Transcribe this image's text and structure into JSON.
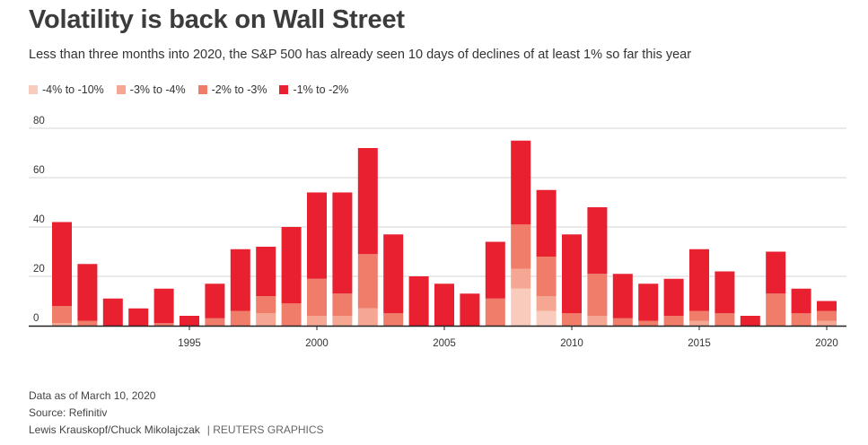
{
  "header": {
    "title": "Volatility is back on Wall Street",
    "subtitle": "Less than three months into 2020, the S&P 500 has already seen 10 days of declines of at least 1% so far this year"
  },
  "legend": [
    {
      "label": "-4% to -10%",
      "color": "#f9cbbd"
    },
    {
      "label": "-3% to -4%",
      "color": "#f5a793"
    },
    {
      "label": "-2% to -3%",
      "color": "#ef7d6a"
    },
    {
      "label": "-1% to -2%",
      "color": "#e8202f"
    }
  ],
  "chart_data": {
    "type": "bar",
    "stacked": true,
    "x": [
      1990,
      1991,
      1992,
      1993,
      1994,
      1995,
      1996,
      1997,
      1998,
      1999,
      2000,
      2001,
      2002,
      2003,
      2004,
      2005,
      2006,
      2007,
      2008,
      2009,
      2010,
      2011,
      2012,
      2013,
      2014,
      2015,
      2016,
      2017,
      2018,
      2019,
      2020
    ],
    "series": [
      {
        "name": "-4% to -10%",
        "values": [
          0,
          0,
          0,
          0,
          0,
          0,
          0,
          0,
          0,
          0,
          0,
          0,
          0,
          0,
          0,
          0,
          0,
          0,
          15,
          6,
          0,
          0,
          0,
          0,
          0,
          0,
          0,
          0,
          0,
          0,
          0
        ]
      },
      {
        "name": "-3% to -4%",
        "values": [
          1,
          0,
          0,
          0,
          0,
          0,
          0,
          0,
          5,
          0,
          4,
          4,
          7,
          0,
          0,
          0,
          0,
          0,
          8,
          6,
          0,
          4,
          0,
          0,
          0,
          2,
          0,
          0,
          0,
          0,
          2
        ]
      },
      {
        "name": "-2% to -3%",
        "values": [
          7,
          2,
          0,
          0,
          1,
          0,
          3,
          6,
          7,
          9,
          15,
          9,
          22,
          5,
          0,
          0,
          0,
          11,
          18,
          16,
          5,
          17,
          3,
          2,
          4,
          4,
          5,
          0,
          13,
          5,
          4
        ]
      },
      {
        "name": "-1% to -2%",
        "values": [
          34,
          23,
          11,
          7,
          14,
          4,
          14,
          25,
          20,
          31,
          35,
          41,
          43,
          32,
          20,
          17,
          13,
          23,
          34,
          27,
          32,
          27,
          18,
          15,
          15,
          25,
          17,
          4,
          17,
          10,
          4
        ]
      }
    ],
    "ylim": [
      0,
      80
    ],
    "yticks": [
      0,
      20,
      40,
      60,
      80
    ],
    "xticks": [
      1995,
      2000,
      2005,
      2010,
      2015,
      2020
    ],
    "grid": true
  },
  "footer": {
    "data_note": "Data as of March 10, 2020",
    "source": "Source: Refinitiv",
    "credits": "Lewis Krauskopf/Chuck Mikolajczak",
    "brand": "| REUTERS GRAPHICS"
  }
}
